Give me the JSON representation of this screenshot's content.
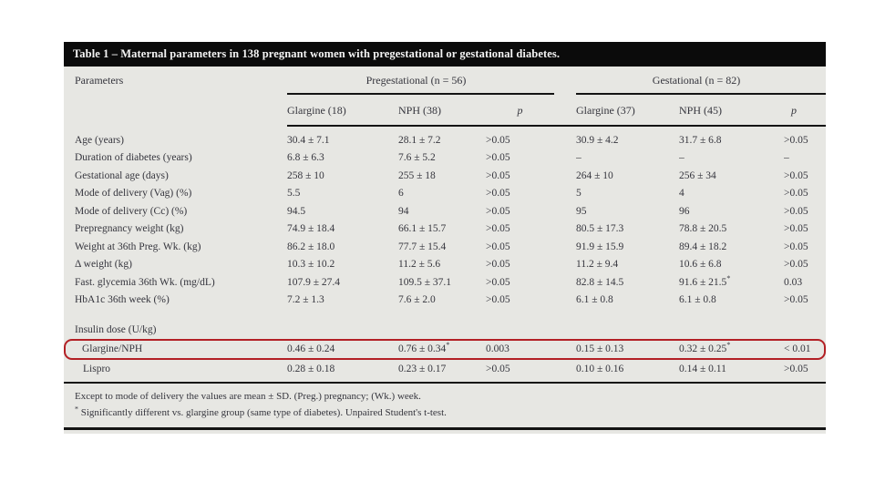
{
  "table": {
    "title": "Table 1 – Maternal parameters in 138 pregnant women with pregestational or gestational diabetes.",
    "params_header": "Parameters",
    "groups": [
      {
        "label": "Pregestational (n = 56)"
      },
      {
        "label": "Gestational (n = 82)"
      }
    ],
    "subheaders": [
      "Glargine (18)",
      "NPH (38)",
      "p",
      "Glargine (37)",
      "NPH (45)",
      "p"
    ],
    "rows": [
      {
        "label": "Age (years)",
        "section": false,
        "indent": false,
        "highlight": false,
        "values": [
          "30.4 ± 7.1",
          "28.1 ± 7.2",
          ">0.05",
          "30.9 ± 4.2",
          "31.7 ± 6.8",
          ">0.05"
        ]
      },
      {
        "label": "Duration of diabetes (years)",
        "section": false,
        "indent": false,
        "highlight": false,
        "values": [
          "6.8 ± 6.3",
          "7.6 ± 5.2",
          ">0.05",
          "–",
          "–",
          "–"
        ]
      },
      {
        "label": "Gestational age (days)",
        "section": false,
        "indent": false,
        "highlight": false,
        "values": [
          "258 ± 10",
          "255 ± 18",
          ">0.05",
          "264 ± 10",
          "256 ± 34",
          ">0.05"
        ]
      },
      {
        "label": "Mode of delivery (Vag) (%)",
        "section": false,
        "indent": false,
        "highlight": false,
        "values": [
          "5.5",
          "6",
          ">0.05",
          "5",
          "4",
          ">0.05"
        ]
      },
      {
        "label": "Mode of delivery (Cc) (%)",
        "section": false,
        "indent": false,
        "highlight": false,
        "values": [
          "94.5",
          "94",
          ">0.05",
          "95",
          "96",
          ">0.05"
        ]
      },
      {
        "label": "Prepregnancy weight (kg)",
        "section": false,
        "indent": false,
        "highlight": false,
        "values": [
          "74.9 ± 18.4",
          "66.1 ± 15.7",
          ">0.05",
          "80.5 ± 17.3",
          "78.8 ± 20.5",
          ">0.05"
        ]
      },
      {
        "label": "Weight at 36th Preg. Wk. (kg)",
        "section": false,
        "indent": false,
        "highlight": false,
        "values": [
          "86.2 ± 18.0",
          "77.7 ± 15.4",
          ">0.05",
          "91.9 ± 15.9",
          "89.4 ± 18.2",
          ">0.05"
        ]
      },
      {
        "label": "Δ weight (kg)",
        "section": false,
        "indent": false,
        "highlight": false,
        "values": [
          "10.3 ± 10.2",
          "11.2 ± 5.6",
          ">0.05",
          "11.2 ± 9.4",
          "10.6 ± 6.8",
          ">0.05"
        ]
      },
      {
        "label": "Fast. glycemia 36th Wk. (mg/dL)",
        "section": false,
        "indent": false,
        "highlight": false,
        "values": [
          "107.9 ± 27.4",
          "109.5 ± 37.1",
          ">0.05",
          "82.8 ± 14.5",
          "91.6 ± 21.5*",
          "0.03"
        ]
      },
      {
        "label": "HbA1c 36th week (%)",
        "section": false,
        "indent": false,
        "highlight": false,
        "values": [
          "7.2 ± 1.3",
          "7.6 ± 2.0",
          ">0.05",
          "6.1 ± 0.8",
          "6.1 ± 0.8",
          ">0.05"
        ]
      },
      {
        "label": "Insulin dose (U/kg)",
        "section": true,
        "indent": false,
        "highlight": false,
        "values": [
          "",
          "",
          "",
          "",
          "",
          ""
        ]
      },
      {
        "label": "Glargine/NPH",
        "section": false,
        "indent": true,
        "highlight": true,
        "values": [
          "0.46 ± 0.24",
          "0.76 ± 0.34*",
          "0.003",
          "0.15 ± 0.13",
          "0.32 ± 0.25*",
          "< 0.01"
        ]
      },
      {
        "label": "Lispro",
        "section": false,
        "indent": true,
        "highlight": false,
        "values": [
          "0.28 ± 0.18",
          "0.23 ± 0.17",
          ">0.05",
          "0.10 ± 0.16",
          "0.14 ± 0.11",
          ">0.05"
        ]
      }
    ],
    "footnotes": [
      {
        "marker": "",
        "text": "Except to mode of delivery the values are mean ± SD. (Preg.) pregnancy; (Wk.) week."
      },
      {
        "marker": "*",
        "text": "Significantly different vs. glargine group (same type of diabetes). Unpaired Student's t-test."
      }
    ],
    "highlight_color": "#b32025"
  }
}
